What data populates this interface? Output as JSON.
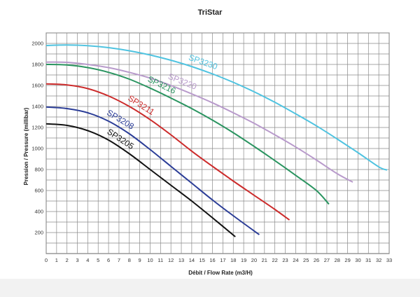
{
  "chart_data": {
    "type": "line",
    "title": "TriStar",
    "xlabel": "Débit / Flow Rate (m3/H)",
    "ylabel": "Pression / Pressure (millibar)",
    "xlim": [
      0,
      33
    ],
    "ylim": [
      0,
      2100
    ],
    "x_ticks": [
      "0",
      "1",
      "2",
      "3",
      "4",
      "5",
      "6",
      "7",
      "8",
      "9",
      "10",
      "11",
      "12",
      "13",
      "14",
      "15",
      "16",
      "17",
      "18",
      "19",
      "20",
      "21",
      "22",
      "23",
      "24",
      "25",
      "26",
      "27",
      "28",
      "29",
      "30",
      "31",
      "32",
      "33"
    ],
    "y_ticks": [
      "200",
      "400",
      "600",
      "800",
      "1000",
      "1200",
      "1400",
      "1600",
      "1800",
      "2000"
    ],
    "grid": true,
    "series": [
      {
        "name": "SP3205",
        "color": "#111111",
        "points": [
          [
            0,
            1235
          ],
          [
            2,
            1220
          ],
          [
            4,
            1170
          ],
          [
            6,
            1080
          ],
          [
            8,
            950
          ],
          [
            10,
            800
          ],
          [
            12,
            650
          ],
          [
            14,
            500
          ],
          [
            16,
            340
          ],
          [
            18.2,
            160
          ]
        ]
      },
      {
        "name": "SP3208",
        "color": "#2b3d97",
        "points": [
          [
            0,
            1395
          ],
          [
            2,
            1380
          ],
          [
            4,
            1340
          ],
          [
            6,
            1260
          ],
          [
            8,
            1140
          ],
          [
            10,
            990
          ],
          [
            12,
            830
          ],
          [
            14,
            670
          ],
          [
            16,
            510
          ],
          [
            18,
            360
          ],
          [
            20.5,
            180
          ]
        ]
      },
      {
        "name": "SP3211",
        "color": "#cc2b2b",
        "points": [
          [
            0,
            1615
          ],
          [
            2,
            1605
          ],
          [
            4,
            1570
          ],
          [
            6,
            1500
          ],
          [
            8,
            1400
          ],
          [
            10,
            1275
          ],
          [
            12,
            1130
          ],
          [
            14,
            975
          ],
          [
            16,
            830
          ],
          [
            18,
            690
          ],
          [
            20,
            555
          ],
          [
            22,
            420
          ],
          [
            23.4,
            320
          ]
        ]
      },
      {
        "name": "SP3216",
        "color": "#2a9460",
        "points": [
          [
            0,
            1800
          ],
          [
            2,
            1795
          ],
          [
            4,
            1770
          ],
          [
            6,
            1725
          ],
          [
            8,
            1660
          ],
          [
            10,
            1575
          ],
          [
            12,
            1480
          ],
          [
            14,
            1380
          ],
          [
            16,
            1270
          ],
          [
            18,
            1150
          ],
          [
            20,
            1020
          ],
          [
            22,
            885
          ],
          [
            24,
            745
          ],
          [
            26,
            600
          ],
          [
            27.2,
            470
          ]
        ]
      },
      {
        "name": "SP3220",
        "color": "#b89acb",
        "points": [
          [
            0,
            1822
          ],
          [
            2,
            1820
          ],
          [
            4,
            1800
          ],
          [
            6,
            1770
          ],
          [
            8,
            1725
          ],
          [
            10,
            1670
          ],
          [
            12,
            1600
          ],
          [
            14,
            1520
          ],
          [
            16,
            1435
          ],
          [
            18,
            1340
          ],
          [
            20,
            1240
          ],
          [
            22,
            1130
          ],
          [
            24,
            1015
          ],
          [
            26,
            890
          ],
          [
            28,
            760
          ],
          [
            29.5,
            680
          ]
        ]
      },
      {
        "name": "SP3230",
        "color": "#4fc3e0",
        "points": [
          [
            0,
            1980
          ],
          [
            2,
            1985
          ],
          [
            4,
            1978
          ],
          [
            6,
            1960
          ],
          [
            8,
            1930
          ],
          [
            10,
            1890
          ],
          [
            12,
            1840
          ],
          [
            14,
            1780
          ],
          [
            16,
            1710
          ],
          [
            18,
            1630
          ],
          [
            20,
            1540
          ],
          [
            22,
            1440
          ],
          [
            24,
            1330
          ],
          [
            26,
            1215
          ],
          [
            28,
            1090
          ],
          [
            30,
            960
          ],
          [
            32,
            825
          ],
          [
            32.8,
            795
          ]
        ]
      }
    ]
  }
}
